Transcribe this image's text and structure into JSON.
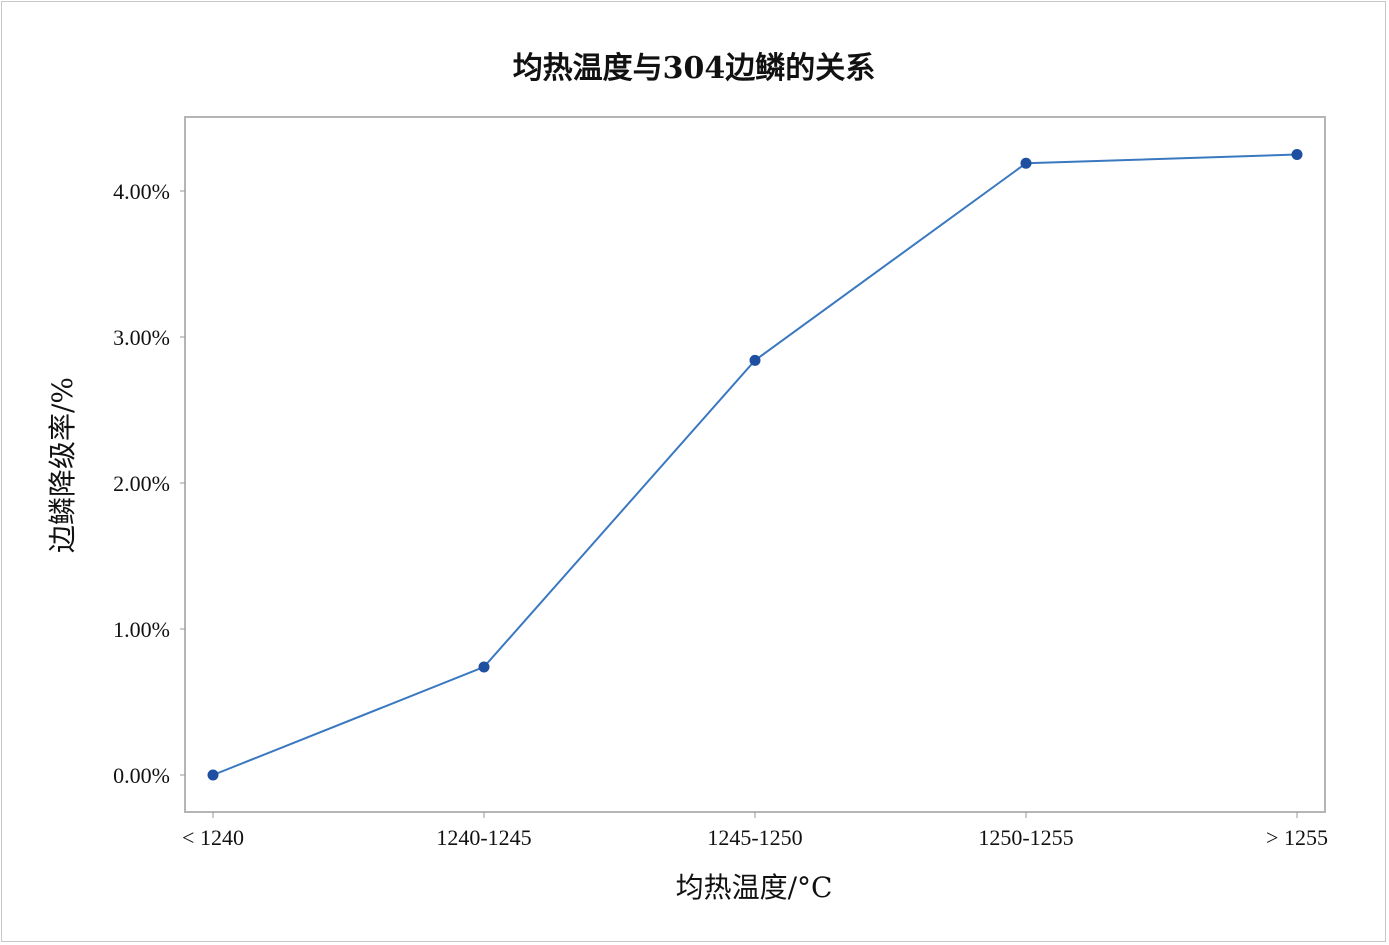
{
  "chart_data": {
    "type": "line",
    "title": "均热温度与304边鳞的关系",
    "xlabel": "均热温度/°C",
    "ylabel": "边鳞降级率/%",
    "categories": [
      "< 1240",
      "1240-1245",
      "1245-1250",
      "1250-1255",
      "> 1255"
    ],
    "series": [
      {
        "name": "边鳞降级率",
        "values": [
          0.0,
          0.74,
          2.84,
          4.19,
          4.25
        ],
        "color": "#3a78c0",
        "marker_color": "#1f4fa0"
      }
    ],
    "yticks": [
      0,
      1,
      2,
      3,
      4
    ],
    "ytick_labels": [
      "0.00%",
      "1.00%",
      "2.00%",
      "3.00%",
      "4.00%"
    ],
    "ylim": [
      -0.26,
      4.5
    ],
    "grid": false
  }
}
